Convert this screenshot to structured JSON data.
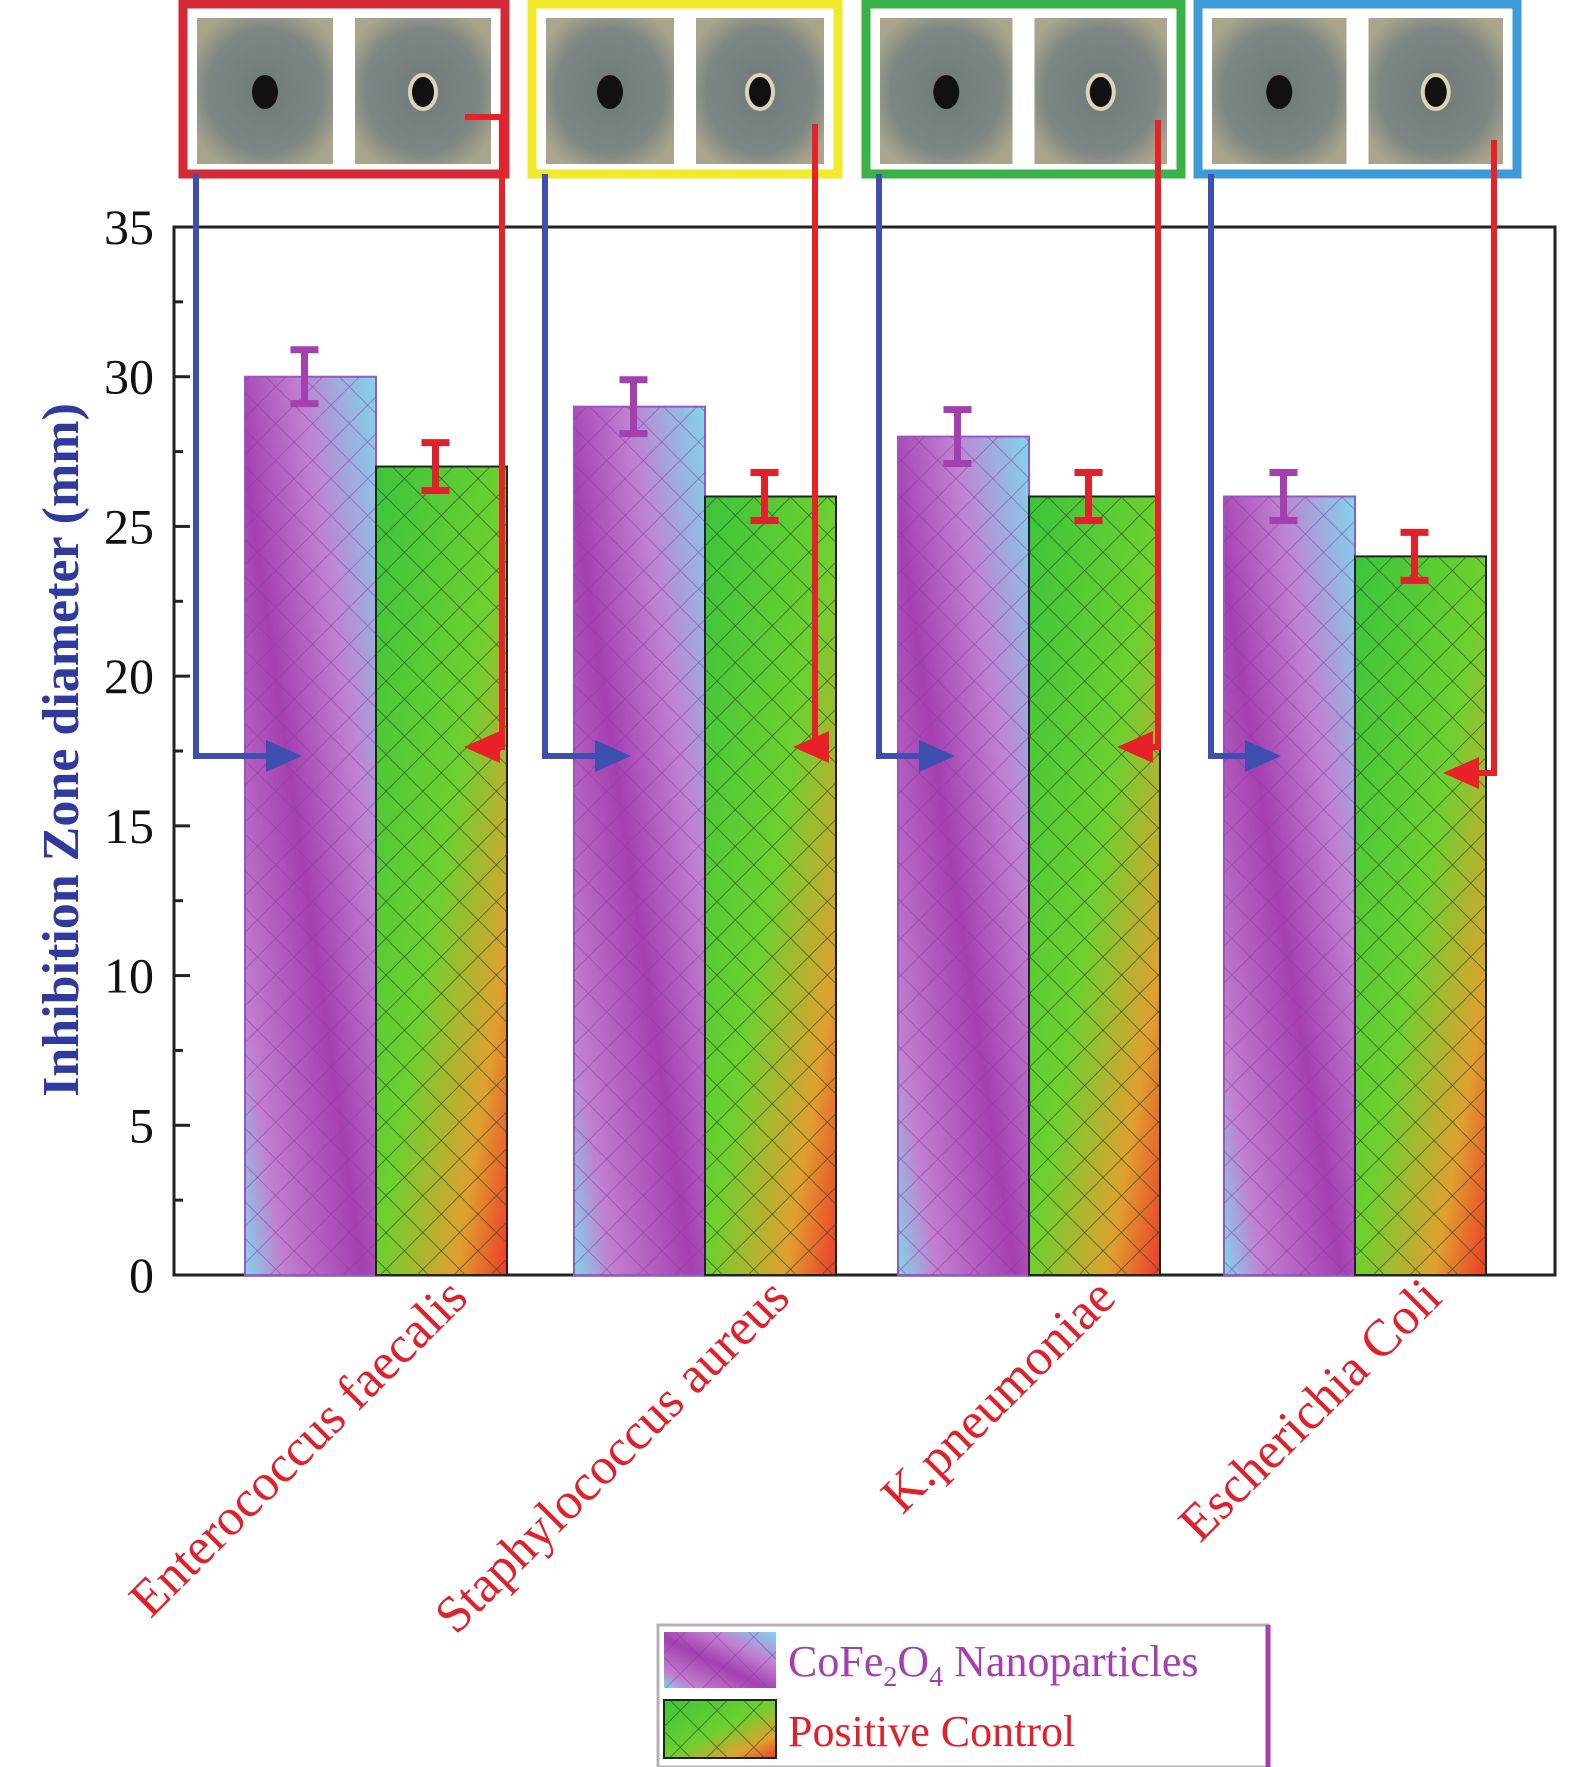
{
  "chart_data": {
    "type": "bar",
    "title": "",
    "xlabel": "",
    "ylabel": "Inhibition Zone diameter (mm)",
    "ylim": [
      0,
      35
    ],
    "yticks": [
      0,
      5,
      10,
      15,
      20,
      25,
      30,
      35
    ],
    "categories": [
      "Enterococcus faecalis",
      "Staphylococcus  aureus",
      "K.pneumoniae",
      "Escherichia Coli"
    ],
    "series": [
      {
        "name": "CoFe2O4 Nanoparticles",
        "values": [
          30,
          29,
          28,
          26
        ],
        "errors": [
          0.9,
          0.9,
          0.9,
          0.8
        ],
        "color": "#a43fb0",
        "accent": "#7fd6ea"
      },
      {
        "name": "Positive Control",
        "values": [
          27,
          26,
          26,
          24
        ],
        "errors": [
          0.8,
          0.8,
          0.8,
          0.8
        ],
        "color": "#3cc43c",
        "accent": "#ee3a2a"
      }
    ],
    "legend": {
      "position": "bottom-right",
      "entries": [
        {
          "prefix": "CoFe",
          "sub1": "2",
          "mid": "O",
          "sub2": "4",
          "suffix": " Nanoparticles",
          "color": "#a43fb0"
        },
        {
          "text": "Positive Control",
          "color": "#e0202a"
        }
      ]
    },
    "grid": false,
    "annotations": {
      "description": "Photos of inhibition zones above each bacterial group (left: nanoparticle, right: positive control) with arrows pointing to the corresponding bars",
      "frame_colors": [
        "#d42a35",
        "#f1ea2a",
        "#3bb14a",
        "#3f9ad9"
      ],
      "arrow_colors": {
        "nanoparticle": "#3f4fb0",
        "control": "#e82027"
      }
    }
  }
}
